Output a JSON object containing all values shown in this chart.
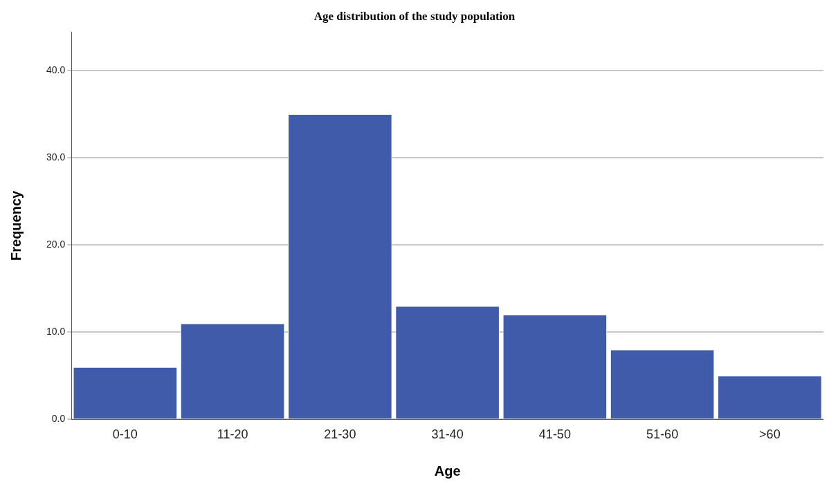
{
  "chart_data": {
    "type": "bar",
    "title": "Age distribution of the study population",
    "xlabel": "Age",
    "ylabel": "Frequency",
    "categories": [
      "0-10",
      "11-20",
      "21-30",
      "31-40",
      "41-50",
      "51-60",
      ">60"
    ],
    "values": [
      6,
      11,
      35,
      13,
      12,
      8,
      5
    ],
    "color": "#3f5ba9",
    "ylim": [
      0,
      44.4
    ],
    "yticks": [
      {
        "value": 0,
        "label": "0.0"
      },
      {
        "value": 10,
        "label": "10.0"
      },
      {
        "value": 20,
        "label": "20.0"
      },
      {
        "value": 30,
        "label": "30.0"
      },
      {
        "value": 40,
        "label": "40.0"
      }
    ],
    "grid": "y",
    "legend": false
  }
}
